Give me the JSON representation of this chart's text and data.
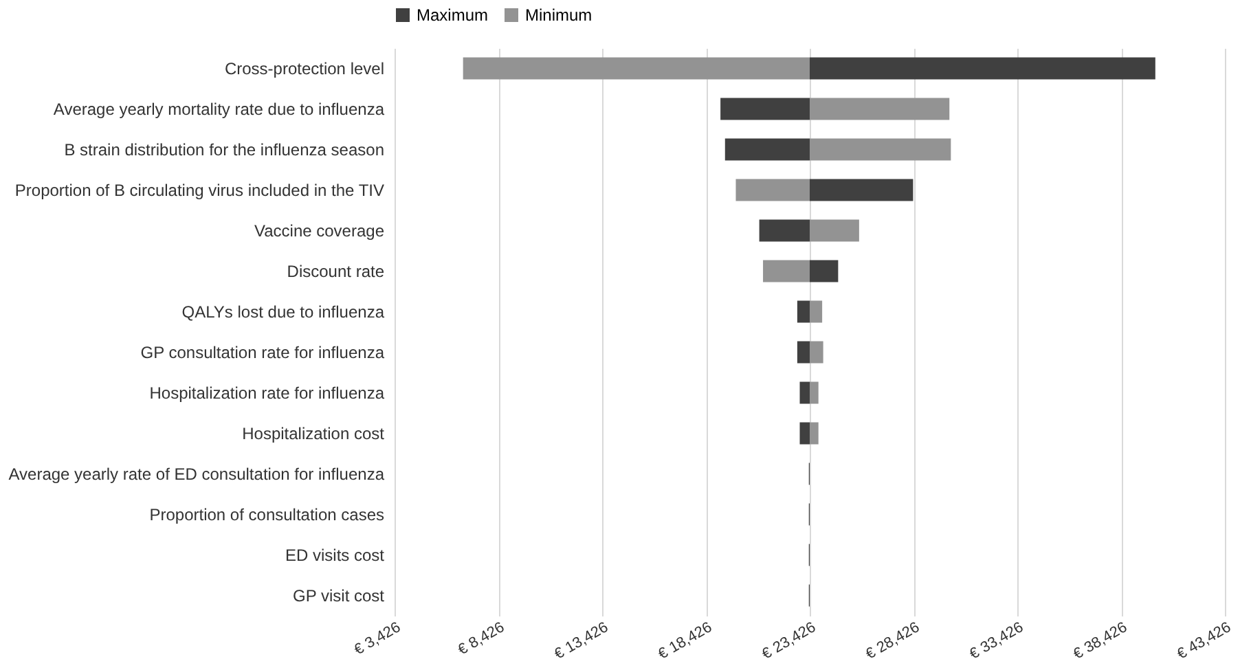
{
  "chart_data": {
    "type": "bar",
    "orientation": "horizontal",
    "categories": [
      "Cross-protection level",
      "Average yearly mortality rate due to influenza",
      "B strain distribution for the influenza season",
      "Proportion of B circulating virus included in the TIV",
      "Vaccine coverage",
      "Discount rate",
      "QALYs lost due to influenza",
      "GP consultation rate for influenza",
      "Hospitalization rate for influenza",
      "Hospitalization cost",
      "Average yearly rate of ED consultation for influenza",
      "Proportion of consultation cases",
      "ED visits cost",
      "GP visit cost"
    ],
    "series": [
      {
        "name": "Maximum",
        "color": "#404040",
        "base": [
          23426,
          23426,
          23426,
          23426,
          23426,
          23426,
          23426,
          23426,
          23426,
          23426,
          23426,
          23426,
          23426,
          23426
        ],
        "values": [
          16650,
          -4300,
          -4080,
          4980,
          -2430,
          1370,
          -600,
          -600,
          -480,
          -480,
          -40,
          -40,
          -40,
          -40
        ]
      },
      {
        "name": "Minimum",
        "color": "#939393",
        "base": [
          23426,
          23426,
          23426,
          23426,
          23426,
          23426,
          23426,
          23426,
          23426,
          23426,
          null,
          null,
          null,
          null
        ],
        "values": [
          -16700,
          6730,
          6800,
          -3560,
          2380,
          -2250,
          600,
          650,
          420,
          420,
          null,
          null,
          null,
          null
        ]
      }
    ],
    "xlim": [
      3426,
      43426
    ],
    "xticks": [
      {
        "value": 3426,
        "label": "€ 3,426"
      },
      {
        "value": 8426,
        "label": "€ 8,426"
      },
      {
        "value": 13426,
        "label": "€ 13,426"
      },
      {
        "value": 18426,
        "label": "€ 18,426"
      },
      {
        "value": 23426,
        "label": "€ 23,426"
      },
      {
        "value": 28426,
        "label": "€ 28,426"
      },
      {
        "value": 33426,
        "label": "€ 33,426"
      },
      {
        "value": 38426,
        "label": "€ 38,426"
      },
      {
        "value": 43426,
        "label": "€ 43,426"
      }
    ],
    "grid": "x",
    "legend": "top"
  }
}
